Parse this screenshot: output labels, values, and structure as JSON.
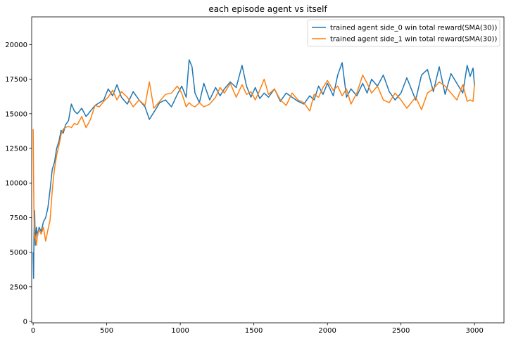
{
  "chart_data": {
    "type": "line",
    "title": "each episode agent vs itself",
    "xlabel": "",
    "ylabel": "",
    "xlim": [
      -10,
      3200
    ],
    "ylim": [
      -100,
      22000
    ],
    "xticks": [
      0,
      500,
      1000,
      1500,
      2000,
      2500,
      3000
    ],
    "yticks": [
      0,
      2500,
      5000,
      7500,
      10000,
      12500,
      15000,
      17500,
      20000
    ],
    "grid": false,
    "legend_position": "top-right",
    "series": [
      {
        "name": "trained agent side_0 win total reward(SMA(30))",
        "color": "#1f77b4",
        "x": [
          0,
          3,
          6,
          10,
          15,
          22,
          30,
          40,
          55,
          70,
          85,
          100,
          115,
          130,
          145,
          160,
          175,
          190,
          205,
          220,
          240,
          260,
          280,
          300,
          330,
          360,
          390,
          420,
          450,
          480,
          510,
          540,
          570,
          600,
          640,
          680,
          720,
          760,
          790,
          820,
          860,
          900,
          940,
          980,
          1010,
          1040,
          1060,
          1080,
          1100,
          1130,
          1160,
          1200,
          1240,
          1270,
          1300,
          1340,
          1380,
          1420,
          1450,
          1480,
          1510,
          1540,
          1570,
          1600,
          1640,
          1680,
          1720,
          1760,
          1800,
          1840,
          1880,
          1910,
          1940,
          1970,
          2000,
          2040,
          2070,
          2100,
          2130,
          2160,
          2200,
          2240,
          2270,
          2300,
          2340,
          2380,
          2420,
          2460,
          2500,
          2540,
          2570,
          2600,
          2640,
          2680,
          2720,
          2760,
          2800,
          2840,
          2880,
          2920,
          2950,
          2970,
          2990,
          3000
        ],
        "values": [
          5000,
          3100,
          6300,
          8000,
          5500,
          6800,
          6200,
          6800,
          6500,
          7200,
          7500,
          8200,
          9500,
          11000,
          11500,
          12500,
          13000,
          13800,
          13600,
          14200,
          14500,
          15700,
          15200,
          15000,
          15400,
          14800,
          15200,
          15600,
          15800,
          16000,
          16800,
          16300,
          17100,
          16200,
          15700,
          16600,
          16000,
          15500,
          14600,
          15100,
          15800,
          16000,
          15500,
          16400,
          17000,
          16200,
          18900,
          18400,
          16500,
          15800,
          17200,
          16000,
          16900,
          16300,
          16800,
          17300,
          16900,
          18500,
          17000,
          16200,
          16900,
          16100,
          16500,
          16200,
          16800,
          15900,
          16500,
          16200,
          15900,
          15700,
          16300,
          16000,
          17000,
          16400,
          17200,
          16300,
          17800,
          18700,
          16200,
          16800,
          16300,
          17200,
          16500,
          17500,
          17000,
          17800,
          16600,
          16000,
          16500,
          17600,
          16800,
          16000,
          17800,
          18200,
          16600,
          18400,
          16400,
          17900,
          17200,
          16500,
          18500,
          17700,
          18300,
          17000
        ]
      },
      {
        "name": "trained agent side_1 win total reward(SMA(30))",
        "color": "#ff7f0e",
        "x": [
          0,
          3,
          6,
          10,
          15,
          22,
          30,
          40,
          55,
          70,
          85,
          100,
          115,
          130,
          145,
          160,
          175,
          190,
          205,
          220,
          240,
          260,
          280,
          300,
          330,
          360,
          390,
          420,
          450,
          480,
          510,
          540,
          570,
          600,
          640,
          680,
          720,
          760,
          790,
          820,
          860,
          900,
          940,
          980,
          1010,
          1040,
          1060,
          1080,
          1100,
          1130,
          1160,
          1200,
          1240,
          1270,
          1300,
          1340,
          1380,
          1420,
          1450,
          1480,
          1510,
          1540,
          1570,
          1600,
          1640,
          1680,
          1720,
          1760,
          1800,
          1840,
          1880,
          1910,
          1940,
          1970,
          2000,
          2040,
          2070,
          2100,
          2130,
          2160,
          2200,
          2240,
          2270,
          2300,
          2340,
          2380,
          2420,
          2460,
          2500,
          2540,
          2570,
          2600,
          2640,
          2680,
          2720,
          2760,
          2800,
          2840,
          2880,
          2920,
          2950,
          2970,
          2990,
          3000
        ],
        "values": [
          13900,
          10500,
          7500,
          6000,
          6200,
          5500,
          6300,
          6600,
          6300,
          6800,
          5800,
          6600,
          7300,
          9500,
          11000,
          12000,
          12700,
          13500,
          13900,
          14000,
          14100,
          14000,
          14300,
          14200,
          14800,
          14000,
          14600,
          15600,
          15500,
          15900,
          16200,
          16700,
          16000,
          16600,
          16200,
          15500,
          16000,
          15600,
          17300,
          15400,
          15900,
          16400,
          16500,
          17000,
          16500,
          15500,
          15800,
          15600,
          15500,
          15800,
          15500,
          15700,
          16200,
          16900,
          16500,
          17200,
          16200,
          17100,
          16400,
          16600,
          16000,
          16700,
          17500,
          16400,
          16800,
          16000,
          15600,
          16500,
          16000,
          15800,
          15200,
          16400,
          16200,
          16900,
          17400,
          16700,
          17000,
          16300,
          16800,
          15700,
          16500,
          17800,
          17200,
          16500,
          17000,
          16000,
          15800,
          16500,
          16000,
          15400,
          15800,
          16200,
          15300,
          16500,
          16800,
          17300,
          17000,
          16500,
          16000,
          17100,
          15900,
          16000,
          15900,
          17200
        ]
      }
    ]
  }
}
